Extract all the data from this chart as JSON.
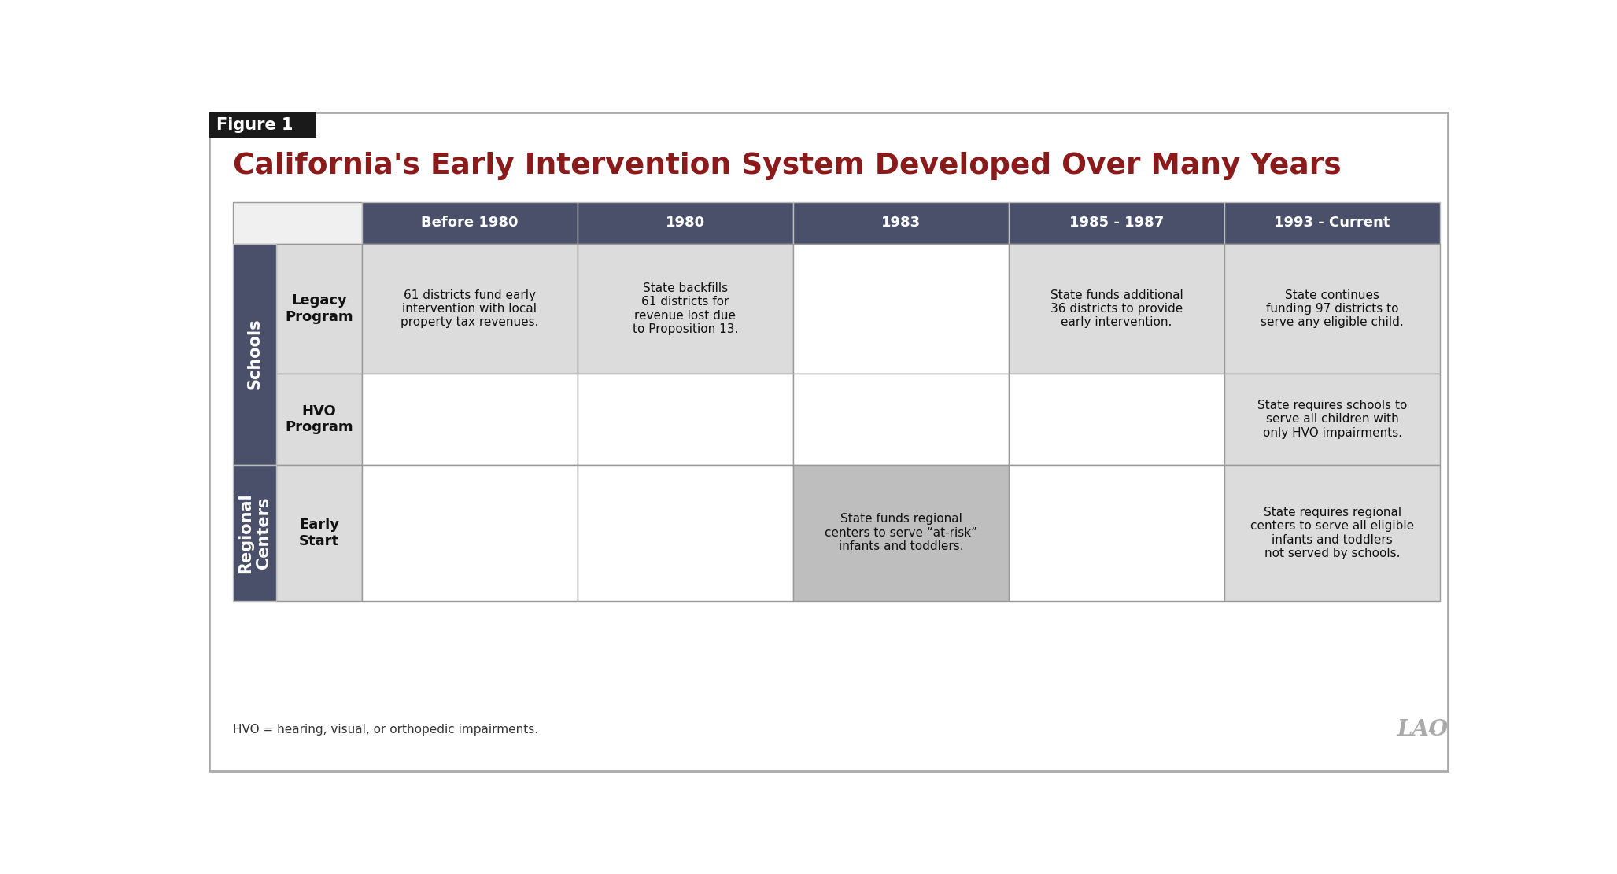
{
  "title": "California's Early Intervention System Developed Over Many Years",
  "figure_label": "Figure 1",
  "title_color": "#8B1A1A",
  "background_color": "#FFFFFF",
  "figure_label_bg": "#1A1A1A",
  "figure_label_color": "#FFFFFF",
  "header_bg": "#4A506A",
  "header_text_color": "#FFFFFF",
  "side_label_bg": "#4A506A",
  "side_label_color": "#FFFFFF",
  "cell_bg_light": "#DCDCDC",
  "cell_bg_white": "#FFFFFF",
  "cell_bg_medium": "#BEBEBE",
  "top_left_bg": "#F0F0F0",
  "row_label_bg": "#DCDCDC",
  "col_headers": [
    "Before 1980",
    "1980",
    "1983",
    "1985 - 1987",
    "1993 - Current"
  ],
  "row_groups": [
    {
      "group_label": "Schools",
      "rows": [
        {
          "row_label": "Legacy\nProgram",
          "cells": [
            "61 districts fund early\nintervention with local\nproperty tax revenues.",
            "State backfills\n61 districts for\nrevenue lost due\nto Proposition 13.",
            "",
            "State funds additional\n36 districts to provide\nearly intervention.",
            "State continues\nfunding 97 districts to\nserve any eligible child."
          ],
          "cell_shading": [
            "light",
            "light",
            "white",
            "light",
            "light"
          ]
        },
        {
          "row_label": "HVO\nProgram",
          "cells": [
            "",
            "",
            "",
            "",
            "State requires schools to\nserve all children with\nonly HVO impairments."
          ],
          "cell_shading": [
            "white",
            "white",
            "white",
            "white",
            "light"
          ]
        }
      ]
    },
    {
      "group_label": "Regional\nCenters",
      "rows": [
        {
          "row_label": "Early\nStart",
          "cells": [
            "",
            "",
            "State funds regional\ncenters to serve “at-risk”\ninfants and toddlers.",
            "",
            "State requires regional\ncenters to serve all eligible\ninfants and toddlers\nnot served by schools."
          ],
          "cell_shading": [
            "white",
            "white",
            "medium",
            "white",
            "light"
          ]
        }
      ]
    }
  ],
  "footnote": "HVO = hearing, visual, or orthopedic impairments."
}
